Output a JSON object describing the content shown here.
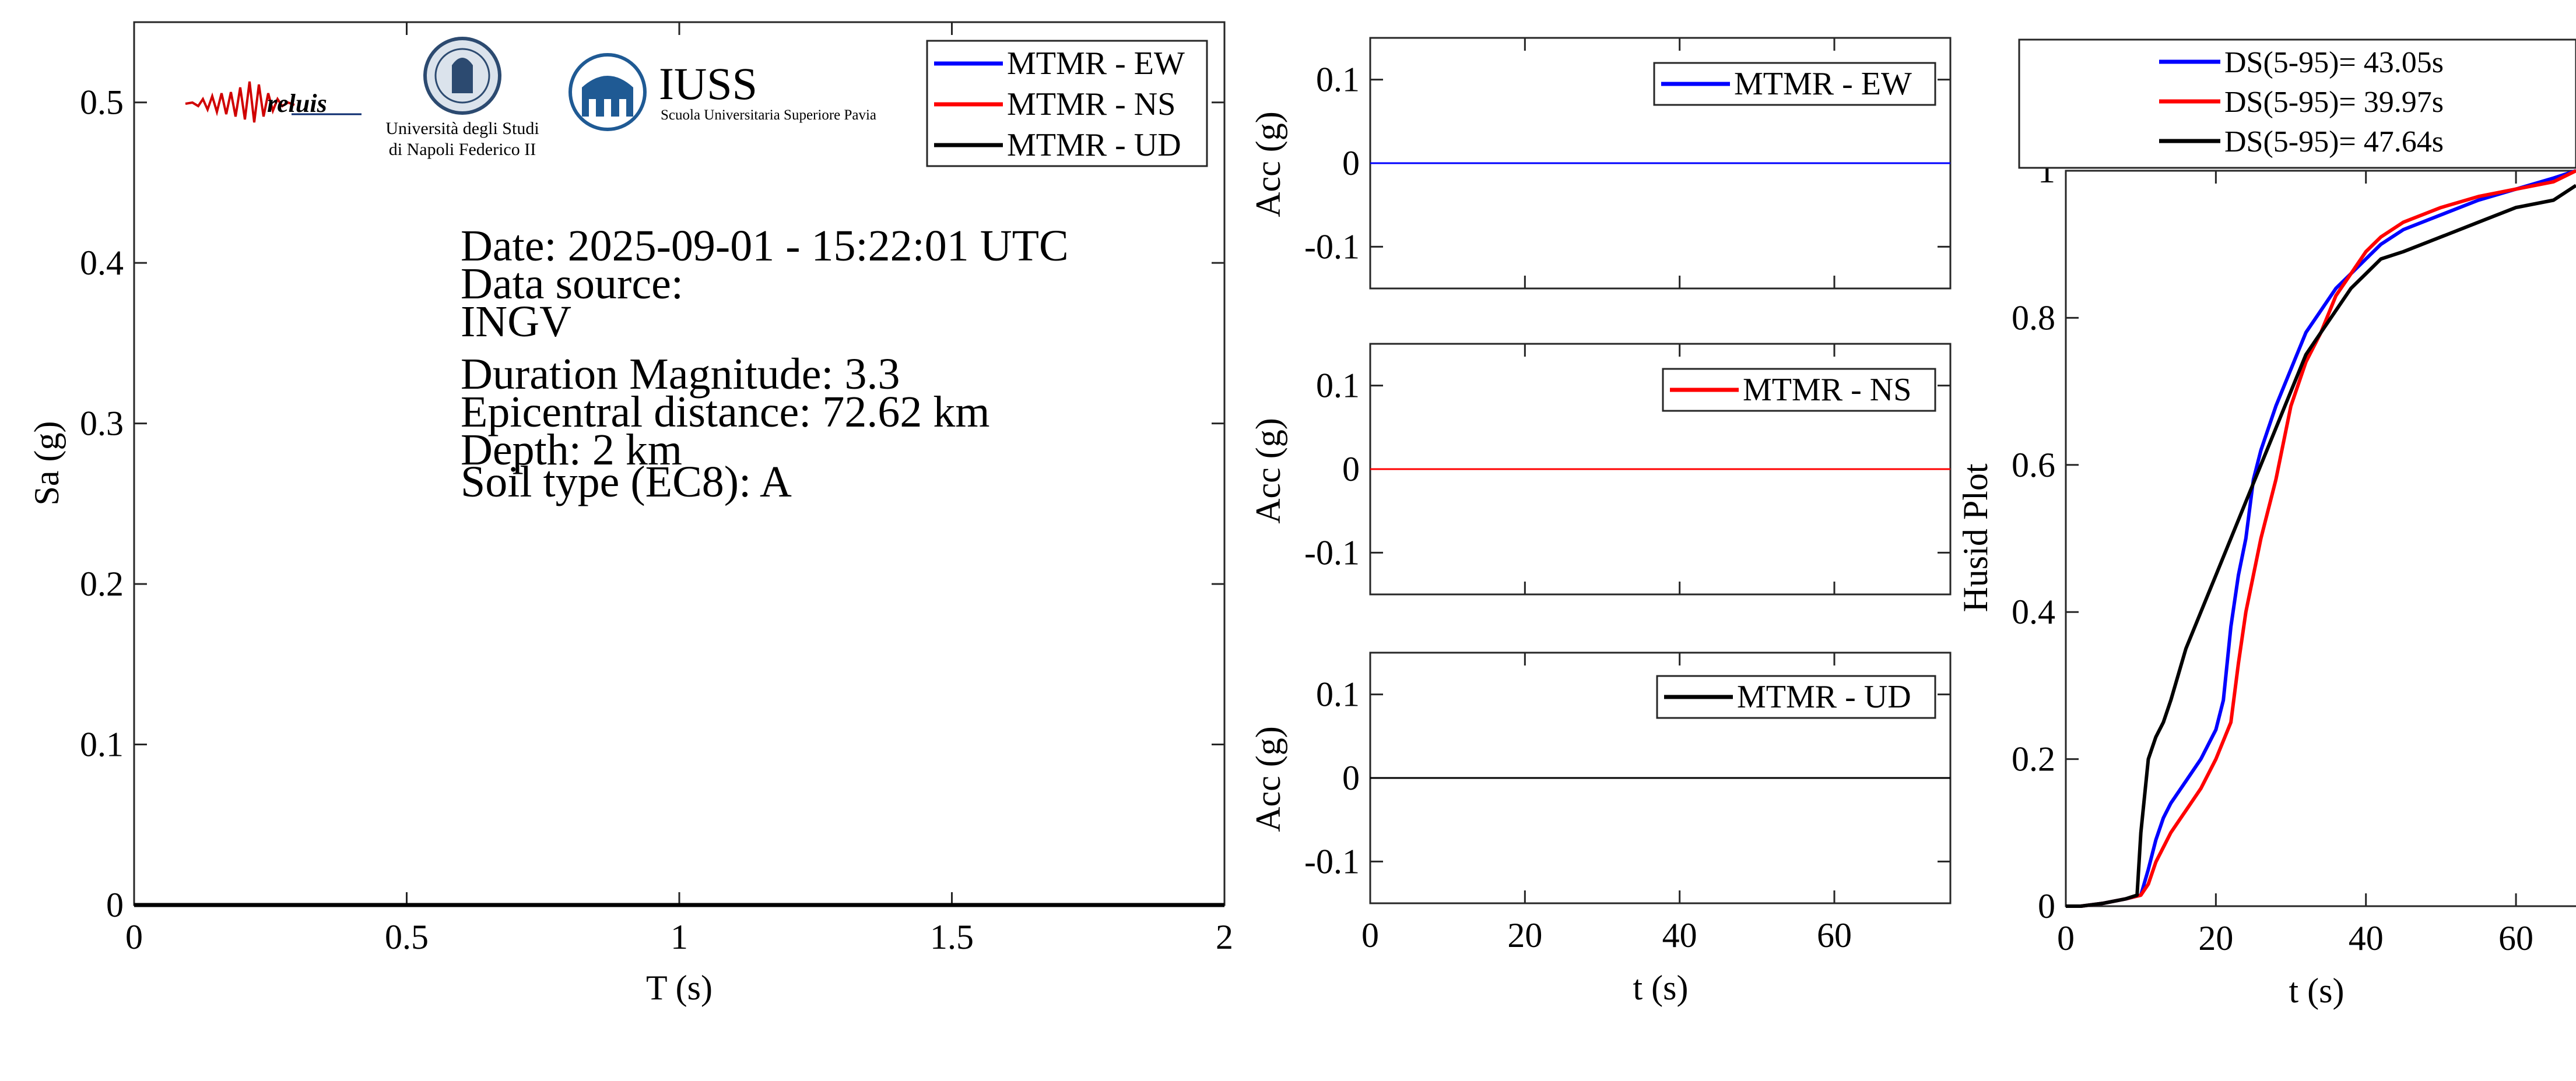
{
  "colors": {
    "ew": "#0000ff",
    "ns": "#ff0000",
    "ud": "#000000",
    "axis": "#262626"
  },
  "logos": {
    "reluis": "reluis",
    "unina_line1": "Università degli Studi",
    "unina_line2": "di Napoli Federico II",
    "iuss": "IUSS",
    "iuss_sub": "Scuola Universitaria Superiore Pavia"
  },
  "info": {
    "date": "Date: 2025-09-01 - 15:22:01 UTC",
    "source_label": "Data source:",
    "source_value": "INGV",
    "magnitude": "Duration Magnitude: 3.3",
    "distance": "Epicentral distance: 72.62 km",
    "depth": "Depth: 2 km",
    "soil": "Soil type (EC8): A"
  },
  "chart_data": [
    {
      "id": "spectrum",
      "type": "line",
      "xlabel": "T (s)",
      "ylabel": "Sa (g)",
      "xlim": [
        0,
        2
      ],
      "ylim": [
        0,
        0.55
      ],
      "xticks": [
        0,
        0.5,
        1,
        1.5,
        2
      ],
      "xtick_labels": [
        "0",
        "0.5",
        "1",
        "1.5",
        "2"
      ],
      "yticks": [
        0,
        0.1,
        0.2,
        0.3,
        0.4,
        0.5
      ],
      "ytick_labels": [
        "0",
        "0.1",
        "0.2",
        "0.3",
        "0.4",
        "0.5"
      ],
      "legend_position": "top-right",
      "series": [
        {
          "name": "MTMR - EW",
          "color": "#0000ff",
          "x": [
            0,
            2
          ],
          "y": [
            0,
            0
          ]
        },
        {
          "name": "MTMR - NS",
          "color": "#ff0000",
          "x": [
            0,
            2
          ],
          "y": [
            0,
            0
          ]
        },
        {
          "name": "MTMR - UD",
          "color": "#000000",
          "x": [
            0,
            2
          ],
          "y": [
            0,
            0
          ]
        }
      ]
    },
    {
      "id": "acc_ew",
      "type": "line",
      "xlabel": "",
      "ylabel": "Acc (g)",
      "xlim": [
        0,
        75
      ],
      "ylim": [
        -0.15,
        0.15
      ],
      "yticks": [
        -0.1,
        0,
        0.1
      ],
      "ytick_labels": [
        "-0.1",
        "0",
        "0.1"
      ],
      "legend_position": "top-right",
      "series": [
        {
          "name": "MTMR - EW",
          "color": "#0000ff",
          "x": [
            0,
            75
          ],
          "y": [
            0,
            0
          ]
        }
      ]
    },
    {
      "id": "acc_ns",
      "type": "line",
      "xlabel": "",
      "ylabel": "Acc (g)",
      "xlim": [
        0,
        75
      ],
      "ylim": [
        -0.15,
        0.15
      ],
      "yticks": [
        -0.1,
        0,
        0.1
      ],
      "ytick_labels": [
        "-0.1",
        "0",
        "0.1"
      ],
      "legend_position": "top-right",
      "series": [
        {
          "name": "MTMR - NS",
          "color": "#ff0000",
          "x": [
            0,
            75
          ],
          "y": [
            0,
            0
          ]
        }
      ]
    },
    {
      "id": "acc_ud",
      "type": "line",
      "xlabel": "t (s)",
      "ylabel": "Acc (g)",
      "xlim": [
        0,
        75
      ],
      "ylim": [
        -0.15,
        0.15
      ],
      "xticks": [
        0,
        20,
        40,
        60
      ],
      "xtick_labels": [
        "0",
        "20",
        "40",
        "60"
      ],
      "yticks": [
        -0.1,
        0,
        0.1
      ],
      "ytick_labels": [
        "-0.1",
        "0",
        "0.1"
      ],
      "legend_position": "top-right",
      "series": [
        {
          "name": "MTMR - UD",
          "color": "#000000",
          "x": [
            0,
            75
          ],
          "y": [
            0,
            0
          ]
        }
      ]
    },
    {
      "id": "husid",
      "type": "line",
      "xlabel": "t (s)",
      "ylabel": "Husid Plot",
      "xlim": [
        0,
        68
      ],
      "ylim": [
        0,
        1
      ],
      "xticks": [
        0,
        20,
        40,
        60
      ],
      "xtick_labels": [
        "0",
        "20",
        "40",
        "60"
      ],
      "yticks": [
        0,
        0.2,
        0.4,
        0.6,
        0.8,
        1
      ],
      "ytick_labels": [
        "0",
        "0.2",
        "0.4",
        "0.6",
        "0.8",
        "1"
      ],
      "legend_position": "above",
      "series": [
        {
          "name": "DS(5-95)= 43.05s",
          "color": "#0000ff",
          "x": [
            0,
            2,
            5,
            8,
            10,
            11,
            12,
            13,
            14,
            16,
            18,
            20,
            21,
            22,
            23,
            24,
            25,
            26,
            28,
            30,
            32,
            34,
            36,
            38,
            40,
            42,
            45,
            50,
            55,
            60,
            65,
            68
          ],
          "y": [
            0,
            0,
            0.004,
            0.01,
            0.015,
            0.05,
            0.09,
            0.12,
            0.14,
            0.17,
            0.2,
            0.24,
            0.28,
            0.38,
            0.45,
            0.5,
            0.58,
            0.62,
            0.68,
            0.73,
            0.78,
            0.81,
            0.84,
            0.86,
            0.88,
            0.9,
            0.92,
            0.94,
            0.96,
            0.975,
            0.99,
            1.0
          ]
        },
        {
          "name": "DS(5-95)= 39.97s",
          "color": "#ff0000",
          "x": [
            0,
            2,
            5,
            8,
            10,
            11,
            12,
            13,
            14,
            16,
            18,
            20,
            22,
            23,
            24,
            25,
            26,
            28,
            30,
            32,
            34,
            36,
            38,
            40,
            42,
            45,
            50,
            55,
            60,
            65,
            68
          ],
          "y": [
            0,
            0,
            0.004,
            0.01,
            0.015,
            0.03,
            0.06,
            0.08,
            0.1,
            0.13,
            0.16,
            0.2,
            0.25,
            0.33,
            0.4,
            0.45,
            0.5,
            0.58,
            0.68,
            0.74,
            0.78,
            0.83,
            0.86,
            0.89,
            0.91,
            0.93,
            0.95,
            0.965,
            0.975,
            0.985,
            1.0
          ]
        },
        {
          "name": "DS(5-95)= 47.64s",
          "color": "#000000",
          "x": [
            0,
            2,
            5,
            8,
            9.5,
            10,
            11,
            12,
            13,
            14,
            16,
            18,
            20,
            22,
            24,
            26,
            28,
            30,
            32,
            34,
            36,
            38,
            40,
            42,
            45,
            50,
            55,
            60,
            65,
            68
          ],
          "y": [
            0,
            0,
            0.004,
            0.01,
            0.015,
            0.1,
            0.2,
            0.23,
            0.25,
            0.28,
            0.35,
            0.4,
            0.45,
            0.5,
            0.55,
            0.6,
            0.65,
            0.7,
            0.75,
            0.78,
            0.81,
            0.84,
            0.86,
            0.88,
            0.89,
            0.91,
            0.93,
            0.95,
            0.96,
            0.98
          ]
        }
      ]
    }
  ]
}
